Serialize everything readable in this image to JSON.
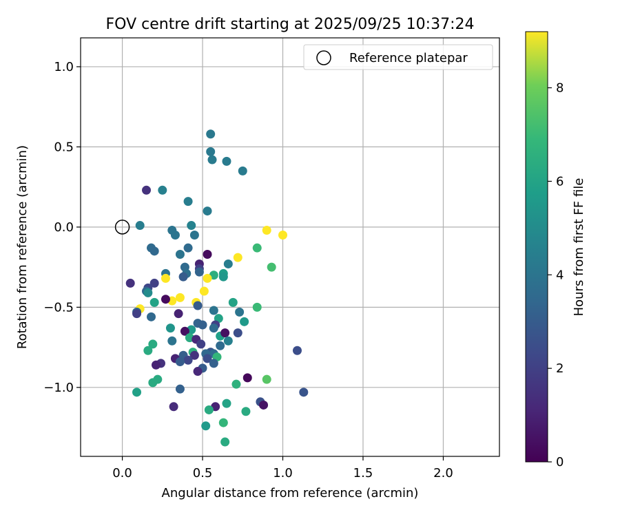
{
  "chart_data": {
    "type": "scatter",
    "title": "FOV centre drift starting at 2025/09/25 10:37:24",
    "xlabel": "Angular distance from reference (arcmin)",
    "ylabel": "Rotation from reference (arcmin)",
    "xlim": [
      -0.26,
      2.35
    ],
    "ylim": [
      -1.43,
      1.18
    ],
    "xticks": [
      0.0,
      0.5,
      1.0,
      1.5,
      2.0
    ],
    "yticks": [
      -1.0,
      -0.5,
      0.0,
      0.5,
      1.0
    ],
    "xtick_labels": [
      "0.0",
      "0.5",
      "1.0",
      "1.5",
      "2.0"
    ],
    "ytick_labels": [
      "−1.0",
      "−0.5",
      "0.0",
      "0.5",
      "1.0"
    ],
    "grid": true,
    "legend": {
      "label": "Reference platepar",
      "position": "top-right"
    },
    "reference_point": {
      "x": 0.0,
      "y": 0.0
    },
    "colorbar": {
      "label": "Hours from first FF file",
      "range": [
        0,
        9.2
      ],
      "ticks": [
        0,
        2,
        4,
        6,
        8
      ],
      "tick_labels": [
        "0",
        "2",
        "4",
        "6",
        "8"
      ],
      "colormap": "viridis"
    },
    "points": [
      {
        "x": 0.55,
        "y": 0.58,
        "t": 4.2
      },
      {
        "x": 0.55,
        "y": 0.47,
        "t": 4.2
      },
      {
        "x": 0.56,
        "y": 0.42,
        "t": 4.3
      },
      {
        "x": 0.65,
        "y": 0.41,
        "t": 4.3
      },
      {
        "x": 0.75,
        "y": 0.35,
        "t": 4.3
      },
      {
        "x": 0.15,
        "y": 0.23,
        "t": 1.5
      },
      {
        "x": 0.25,
        "y": 0.23,
        "t": 4.5
      },
      {
        "x": 0.41,
        "y": 0.16,
        "t": 4.4
      },
      {
        "x": 0.53,
        "y": 0.1,
        "t": 4.3
      },
      {
        "x": 0.11,
        "y": 0.01,
        "t": 4.4
      },
      {
        "x": 0.43,
        "y": 0.01,
        "t": 4.6
      },
      {
        "x": 0.31,
        "y": -0.02,
        "t": 4.0
      },
      {
        "x": 0.33,
        "y": -0.05,
        "t": 4.0
      },
      {
        "x": 0.45,
        "y": -0.05,
        "t": 4.0
      },
      {
        "x": 0.18,
        "y": -0.13,
        "t": 3.6
      },
      {
        "x": 0.2,
        "y": -0.15,
        "t": 3.5
      },
      {
        "x": 0.41,
        "y": -0.13,
        "t": 3.6
      },
      {
        "x": 0.36,
        "y": -0.17,
        "t": 4.0
      },
      {
        "x": 0.53,
        "y": -0.17,
        "t": 0.3
      },
      {
        "x": 0.66,
        "y": -0.23,
        "t": 4.4
      },
      {
        "x": 0.48,
        "y": -0.23,
        "t": 1.0
      },
      {
        "x": 0.39,
        "y": -0.25,
        "t": 3.6
      },
      {
        "x": 0.48,
        "y": -0.26,
        "t": 2.0
      },
      {
        "x": 0.48,
        "y": -0.28,
        "t": 3.3
      },
      {
        "x": 0.27,
        "y": -0.29,
        "t": 4.0
      },
      {
        "x": 0.4,
        "y": -0.29,
        "t": 3.8
      },
      {
        "x": 0.38,
        "y": -0.31,
        "t": 3.0
      },
      {
        "x": 0.57,
        "y": -0.3,
        "t": 6.5
      },
      {
        "x": 0.63,
        "y": -0.29,
        "t": 5.8
      },
      {
        "x": 0.63,
        "y": -0.31,
        "t": 5.5
      },
      {
        "x": 0.72,
        "y": -0.19,
        "t": 9.2
      },
      {
        "x": 0.84,
        "y": -0.13,
        "t": 7.0
      },
      {
        "x": 0.9,
        "y": -0.02,
        "t": 9.2
      },
      {
        "x": 1.0,
        "y": -0.05,
        "t": 9.2
      },
      {
        "x": 0.93,
        "y": -0.25,
        "t": 7.2
      },
      {
        "x": 0.27,
        "y": -0.32,
        "t": 9.2
      },
      {
        "x": 0.53,
        "y": -0.32,
        "t": 9.2
      },
      {
        "x": 0.05,
        "y": -0.35,
        "t": 1.5
      },
      {
        "x": 0.2,
        "y": -0.35,
        "t": 2.0
      },
      {
        "x": 0.16,
        "y": -0.38,
        "t": 2.2
      },
      {
        "x": 0.15,
        "y": -0.4,
        "t": 3.4
      },
      {
        "x": 0.16,
        "y": -0.41,
        "t": 5.0
      },
      {
        "x": 0.51,
        "y": -0.4,
        "t": 9.2
      },
      {
        "x": 0.36,
        "y": -0.44,
        "t": 9.2
      },
      {
        "x": 0.31,
        "y": -0.46,
        "t": 9.2
      },
      {
        "x": 0.27,
        "y": -0.45,
        "t": 0.3
      },
      {
        "x": 0.2,
        "y": -0.47,
        "t": 6.0
      },
      {
        "x": 0.46,
        "y": -0.47,
        "t": 9.2
      },
      {
        "x": 0.47,
        "y": -0.49,
        "t": 3.0
      },
      {
        "x": 0.69,
        "y": -0.47,
        "t": 6.0
      },
      {
        "x": 0.84,
        "y": -0.5,
        "t": 7.0
      },
      {
        "x": 0.11,
        "y": -0.51,
        "t": 9.2
      },
      {
        "x": 0.09,
        "y": -0.53,
        "t": 3.4
      },
      {
        "x": 0.09,
        "y": -0.54,
        "t": 2.0
      },
      {
        "x": 0.35,
        "y": -0.54,
        "t": 1.0
      },
      {
        "x": 0.57,
        "y": -0.52,
        "t": 4.0
      },
      {
        "x": 0.73,
        "y": -0.53,
        "t": 4.0
      },
      {
        "x": 0.18,
        "y": -0.56,
        "t": 3.5
      },
      {
        "x": 0.6,
        "y": -0.57,
        "t": 6.0
      },
      {
        "x": 0.76,
        "y": -0.59,
        "t": 5.6
      },
      {
        "x": 0.47,
        "y": -0.6,
        "t": 3.3
      },
      {
        "x": 0.5,
        "y": -0.61,
        "t": 3.2
      },
      {
        "x": 0.58,
        "y": -0.61,
        "t": 2.0
      },
      {
        "x": 0.57,
        "y": -0.63,
        "t": 3.6
      },
      {
        "x": 0.3,
        "y": -0.63,
        "t": 5.4
      },
      {
        "x": 0.43,
        "y": -0.64,
        "t": 5.6
      },
      {
        "x": 0.39,
        "y": -0.65,
        "t": 0.4
      },
      {
        "x": 0.61,
        "y": -0.68,
        "t": 5.8
      },
      {
        "x": 0.64,
        "y": -0.66,
        "t": 0.4
      },
      {
        "x": 0.72,
        "y": -0.66,
        "t": 2.5
      },
      {
        "x": 0.42,
        "y": -0.69,
        "t": 6.3
      },
      {
        "x": 0.46,
        "y": -0.7,
        "t": 1.2
      },
      {
        "x": 0.66,
        "y": -0.71,
        "t": 4.5
      },
      {
        "x": 0.31,
        "y": -0.71,
        "t": 4.0
      },
      {
        "x": 0.49,
        "y": -0.73,
        "t": 2.0
      },
      {
        "x": 0.19,
        "y": -0.73,
        "t": 6.3
      },
      {
        "x": 0.61,
        "y": -0.74,
        "t": 3.6
      },
      {
        "x": 0.16,
        "y": -0.77,
        "t": 6.3
      },
      {
        "x": 0.44,
        "y": -0.78,
        "t": 6.6
      },
      {
        "x": 0.55,
        "y": -0.78,
        "t": 2.8
      },
      {
        "x": 0.57,
        "y": -0.79,
        "t": 3.6
      },
      {
        "x": 0.59,
        "y": -0.81,
        "t": 6.8
      },
      {
        "x": 0.38,
        "y": -0.8,
        "t": 3.1
      },
      {
        "x": 0.45,
        "y": -0.8,
        "t": 1.5
      },
      {
        "x": 0.52,
        "y": -0.79,
        "t": 3.5
      },
      {
        "x": 0.53,
        "y": -0.82,
        "t": 2.5
      },
      {
        "x": 0.33,
        "y": -0.82,
        "t": 1.0
      },
      {
        "x": 0.41,
        "y": -0.83,
        "t": 2.2
      },
      {
        "x": 0.36,
        "y": -0.84,
        "t": 3.0
      },
      {
        "x": 0.24,
        "y": -0.85,
        "t": 1.5
      },
      {
        "x": 0.21,
        "y": -0.86,
        "t": 1.0
      },
      {
        "x": 0.57,
        "y": -0.85,
        "t": 3.2
      },
      {
        "x": 0.5,
        "y": -0.88,
        "t": 3.0
      },
      {
        "x": 0.47,
        "y": -0.9,
        "t": 1.2
      },
      {
        "x": 0.22,
        "y": -0.95,
        "t": 6.3
      },
      {
        "x": 0.19,
        "y": -0.97,
        "t": 6.3
      },
      {
        "x": 0.78,
        "y": -0.94,
        "t": 0.2
      },
      {
        "x": 0.9,
        "y": -0.95,
        "t": 7.6
      },
      {
        "x": 0.71,
        "y": -0.98,
        "t": 6.6
      },
      {
        "x": 0.36,
        "y": -1.01,
        "t": 3.2
      },
      {
        "x": 0.09,
        "y": -1.03,
        "t": 5.9
      },
      {
        "x": 1.09,
        "y": -0.77,
        "t": 2.5
      },
      {
        "x": 1.13,
        "y": -1.03,
        "t": 2.7
      },
      {
        "x": 0.86,
        "y": -1.09,
        "t": 2.6
      },
      {
        "x": 0.88,
        "y": -1.11,
        "t": 0.5
      },
      {
        "x": 0.65,
        "y": -1.1,
        "t": 6.0
      },
      {
        "x": 0.58,
        "y": -1.12,
        "t": 1.0
      },
      {
        "x": 0.32,
        "y": -1.12,
        "t": 1.3
      },
      {
        "x": 0.54,
        "y": -1.14,
        "t": 6.3
      },
      {
        "x": 0.77,
        "y": -1.15,
        "t": 6.3
      },
      {
        "x": 0.63,
        "y": -1.22,
        "t": 6.8
      },
      {
        "x": 0.52,
        "y": -1.24,
        "t": 5.6
      },
      {
        "x": 0.64,
        "y": -1.34,
        "t": 6.3
      }
    ]
  }
}
